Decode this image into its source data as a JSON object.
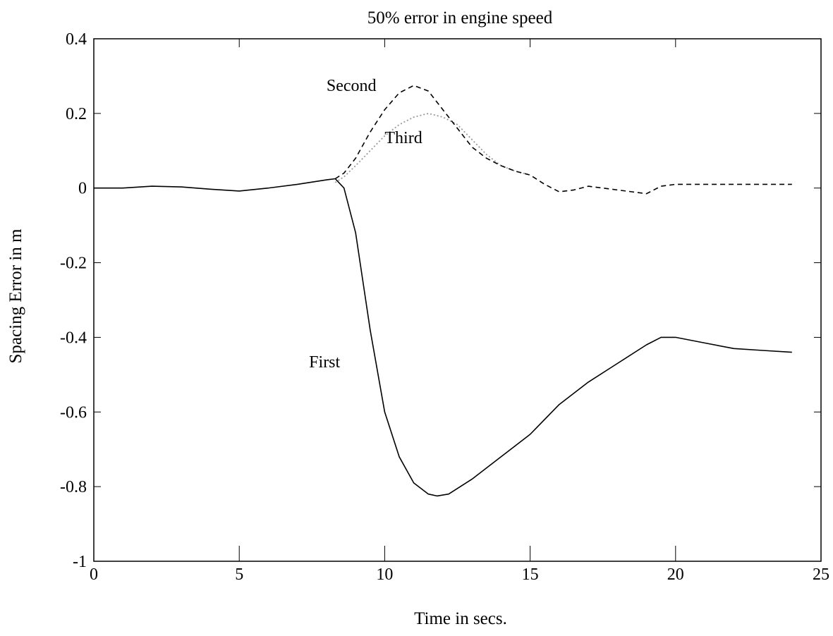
{
  "chart_data": {
    "type": "line",
    "title": "50% error in engine speed",
    "xlabel": "Time in secs.",
    "ylabel": "Spacing Error in m",
    "xlim": [
      0,
      25
    ],
    "ylim": [
      -1,
      0.4
    ],
    "xticks": [
      0,
      5,
      10,
      15,
      20,
      25
    ],
    "xtick_labels": [
      "0",
      "5",
      "10",
      "15",
      "20",
      "25"
    ],
    "yticks": [
      0.4,
      0.2,
      0,
      -0.2,
      -0.4,
      -0.6,
      -0.8,
      -1
    ],
    "ytick_labels": [
      "0.4",
      "0.2",
      "0",
      "-0.2",
      "-0.4",
      "-0.6",
      "-0.8",
      "-1"
    ],
    "grid": false,
    "series": [
      {
        "name": "First",
        "style": "solid",
        "color": "#000000",
        "x": [
          0,
          1,
          2,
          3,
          4,
          5,
          6,
          7,
          8,
          8.3,
          8.6,
          9,
          9.5,
          10,
          10.5,
          11,
          11.5,
          11.8,
          12.2,
          13,
          14,
          15,
          16,
          17,
          18,
          19,
          19.5,
          20,
          21,
          22,
          23,
          24
        ],
        "y": [
          0,
          0,
          0.005,
          0.003,
          -0.003,
          -0.008,
          0,
          0.01,
          0.022,
          0.025,
          0,
          -0.12,
          -0.38,
          -0.6,
          -0.72,
          -0.79,
          -0.82,
          -0.825,
          -0.82,
          -0.78,
          -0.72,
          -0.66,
          -0.58,
          -0.52,
          -0.47,
          -0.42,
          -0.4,
          -0.4,
          -0.415,
          -0.43,
          -0.435,
          -0.44
        ]
      },
      {
        "name": "Second",
        "style": "dashed",
        "color": "#000000",
        "x": [
          8.3,
          8.6,
          9,
          9.5,
          10,
          10.5,
          11,
          11.5,
          12,
          12.5,
          13,
          13.5,
          14,
          14.5,
          15,
          15.5,
          16,
          16.5,
          17,
          17.5,
          18,
          18.5,
          19,
          19.5,
          20,
          21,
          22,
          22.5,
          23,
          24
        ],
        "y": [
          0.025,
          0.04,
          0.08,
          0.15,
          0.21,
          0.255,
          0.275,
          0.26,
          0.21,
          0.16,
          0.11,
          0.08,
          0.06,
          0.045,
          0.035,
          0.01,
          -0.01,
          -0.005,
          0.005,
          0,
          -0.005,
          -0.01,
          -0.015,
          0.005,
          0.01,
          0.01,
          0.01,
          0.01,
          0.01,
          0.01
        ]
      },
      {
        "name": "Third",
        "style": "dotted",
        "color": "#999999",
        "x": [
          8.3,
          8.6,
          9,
          9.5,
          10,
          10.5,
          11,
          11.5,
          12,
          12.5,
          13,
          13.5,
          14,
          14.5,
          15
        ],
        "y": [
          0.015,
          0.03,
          0.06,
          0.1,
          0.14,
          0.17,
          0.19,
          0.2,
          0.19,
          0.17,
          0.13,
          0.09,
          0.06,
          0.045,
          0.035
        ]
      }
    ],
    "annotations": [
      {
        "text": "Second",
        "x": 8.0,
        "y": 0.26
      },
      {
        "text": "Third",
        "x": 10.0,
        "y": 0.12
      },
      {
        "text": "First",
        "x": 7.4,
        "y": -0.48
      }
    ]
  }
}
